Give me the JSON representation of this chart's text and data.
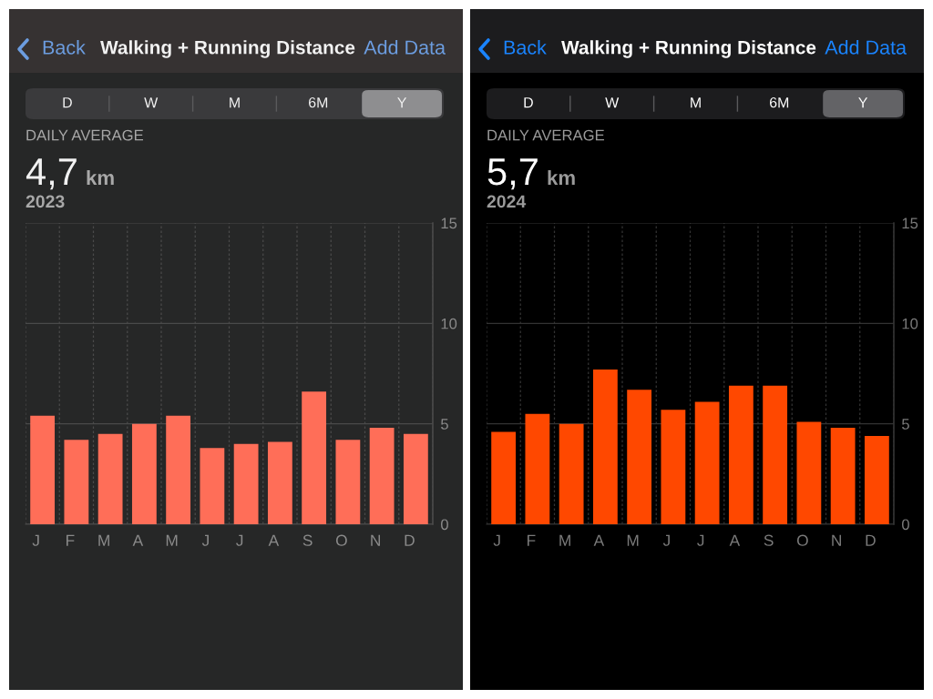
{
  "chart_data": [
    {
      "type": "bar",
      "title": "Walking + Running Distance",
      "subtitle": "DAILY AVERAGE",
      "categories": [
        "J",
        "F",
        "M",
        "A",
        "M",
        "J",
        "J",
        "A",
        "S",
        "O",
        "N",
        "D"
      ],
      "series": [
        {
          "color": "#ff6e58",
          "values": [
            5.4,
            4.2,
            4.5,
            5.0,
            5.4,
            3.8,
            4.0,
            4.1,
            6.6,
            4.2,
            4.8,
            4.5
          ]
        }
      ],
      "ylim": [
        0,
        15
      ],
      "yticks": [
        0,
        5,
        10,
        15
      ],
      "grid": true,
      "annotations": [
        "Back",
        "Add Data",
        "D",
        "W",
        "M",
        "6M",
        "Y",
        "4,7",
        "km",
        "2023"
      ]
    },
    {
      "type": "bar",
      "title": "Walking + Running Distance",
      "subtitle": "DAILY AVERAGE",
      "categories": [
        "J",
        "F",
        "M",
        "A",
        "M",
        "J",
        "J",
        "A",
        "S",
        "O",
        "N",
        "D"
      ],
      "series": [
        {
          "color": "#ff4800",
          "values": [
            4.6,
            5.5,
            5.0,
            7.7,
            6.7,
            5.7,
            6.1,
            6.9,
            6.9,
            5.1,
            4.8,
            4.4
          ]
        }
      ],
      "ylim": [
        0,
        15
      ],
      "yticks": [
        0,
        5,
        10,
        15
      ],
      "grid": true,
      "annotations": [
        "Back",
        "Add Data",
        "D",
        "W",
        "M",
        "6M",
        "Y",
        "5,7",
        "km",
        "2024"
      ]
    }
  ]
}
